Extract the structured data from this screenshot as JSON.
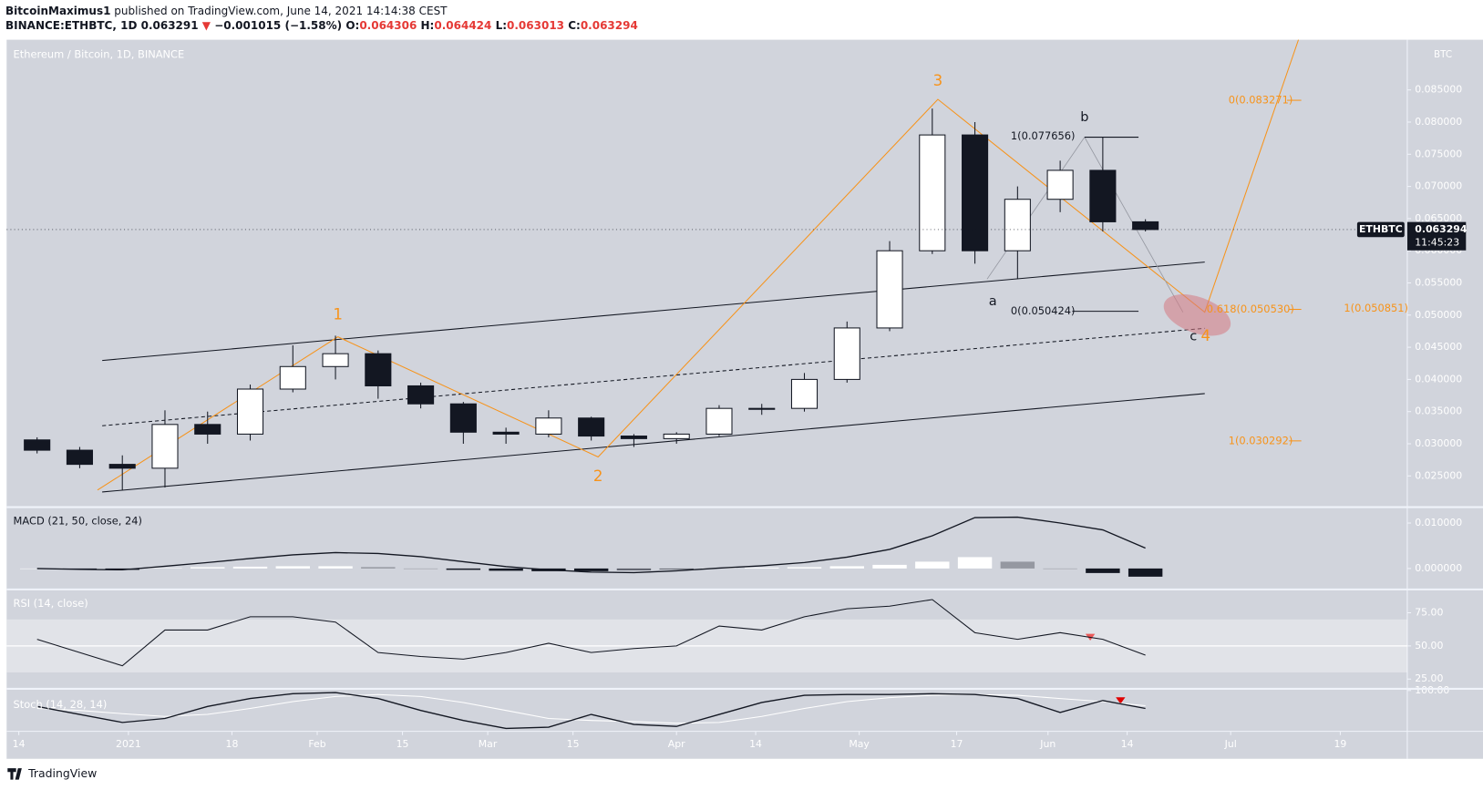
{
  "header": {
    "author": "BitcoinMaximus1",
    "published": "published on TradingView.com, June 14, 2021 14:14:38 CEST",
    "symbol": "BINANCE:ETHBTC, 1D",
    "last": "0.063291",
    "arrow": "▼",
    "change": "−0.001015 (−1.58%)",
    "o_label": "O:",
    "o": "0.064306",
    "h_label": "H:",
    "h": "0.064424",
    "l_label": "L:",
    "l": "0.063013",
    "c_label": "C:",
    "c": "0.063294"
  },
  "footer": {
    "brand": "TradingView"
  },
  "chart_data": [
    {
      "type": "candlestick",
      "title": "Ethereum / Bitcoin, 1D, BINANCE",
      "currency": "BTC",
      "x": [
        "2020-12-14",
        "2020-12-21",
        "2020-12-28",
        "2021-01-04",
        "2021-01-11",
        "2021-01-18",
        "2021-01-25",
        "2021-02-01",
        "2021-02-08",
        "2021-02-15",
        "2021-02-22",
        "2021-03-01",
        "2021-03-08",
        "2021-03-15",
        "2021-03-22",
        "2021-03-29",
        "2021-04-05",
        "2021-04-12",
        "2021-04-19",
        "2021-04-26",
        "2021-05-03",
        "2021-05-10",
        "2021-05-17",
        "2021-05-24",
        "2021-05-31",
        "2021-06-07",
        "2021-06-14"
      ],
      "open": [
        0.0306,
        0.029,
        0.0268,
        0.0262,
        0.033,
        0.0315,
        0.0385,
        0.042,
        0.044,
        0.039,
        0.0362,
        0.0318,
        0.0315,
        0.034,
        0.0312,
        0.0308,
        0.0315,
        0.0355,
        0.0355,
        0.04,
        0.048,
        0.06,
        0.078,
        0.06,
        0.068,
        0.0725,
        0.0645
      ],
      "high": [
        0.031,
        0.0295,
        0.0282,
        0.0352,
        0.035,
        0.0392,
        0.0453,
        0.0468,
        0.0445,
        0.0395,
        0.0365,
        0.0325,
        0.0352,
        0.0342,
        0.0315,
        0.0318,
        0.036,
        0.0362,
        0.041,
        0.049,
        0.0615,
        0.0821,
        0.08,
        0.07,
        0.074,
        0.0777,
        0.0649
      ],
      "low": [
        0.0285,
        0.0262,
        0.0228,
        0.0232,
        0.03,
        0.0305,
        0.038,
        0.04,
        0.037,
        0.0355,
        0.03,
        0.03,
        0.031,
        0.0305,
        0.0295,
        0.03,
        0.0312,
        0.0345,
        0.035,
        0.0395,
        0.0475,
        0.0595,
        0.058,
        0.0556,
        0.066,
        0.063,
        0.063
      ],
      "close": [
        0.029,
        0.0268,
        0.0262,
        0.033,
        0.0315,
        0.0385,
        0.042,
        0.044,
        0.039,
        0.0362,
        0.0318,
        0.0315,
        0.034,
        0.0312,
        0.0308,
        0.0315,
        0.0355,
        0.0355,
        0.04,
        0.048,
        0.06,
        0.078,
        0.06,
        0.068,
        0.0725,
        0.0645,
        0.0633
      ],
      "up_color": "#ffffff",
      "down_color": "#131722",
      "xlim": [
        "2020-12-12",
        "2021-07-30"
      ],
      "xticks": [
        {
          "value": "2020-12-14",
          "label": "14"
        },
        {
          "value": "2021-01-01",
          "label": "2021"
        },
        {
          "value": "2021-01-18",
          "label": "18"
        },
        {
          "value": "2021-02-01",
          "label": "Feb"
        },
        {
          "value": "2021-02-15",
          "label": "15"
        },
        {
          "value": "2021-03-01",
          "label": "Mar"
        },
        {
          "value": "2021-03-15",
          "label": "15"
        },
        {
          "value": "2021-04-01",
          "label": "Apr"
        },
        {
          "value": "2021-04-14",
          "label": "14"
        },
        {
          "value": "2021-05-01",
          "label": "May"
        },
        {
          "value": "2021-05-17",
          "label": "17"
        },
        {
          "value": "2021-06-01",
          "label": "Jun"
        },
        {
          "value": "2021-06-14",
          "label": "14"
        },
        {
          "value": "2021-07-01",
          "label": "Jul"
        },
        {
          "value": "2021-07-19",
          "label": "19"
        }
      ],
      "ylim": [
        0.0203,
        0.0928
      ],
      "yticks": [
        {
          "value": 0.025,
          "label": "0.025000"
        },
        {
          "value": 0.03,
          "label": "0.030000"
        },
        {
          "value": 0.035,
          "label": "0.035000"
        },
        {
          "value": 0.04,
          "label": "0.040000"
        },
        {
          "value": 0.045,
          "label": "0.045000"
        },
        {
          "value": 0.05,
          "label": "0.050000"
        },
        {
          "value": 0.055,
          "label": "0.055000"
        },
        {
          "value": 0.06,
          "label": "0.060000"
        },
        {
          "value": 0.065,
          "label": "0.065000"
        },
        {
          "value": 0.07,
          "label": "0.070000"
        },
        {
          "value": 0.075,
          "label": "0.075000"
        },
        {
          "value": 0.08,
          "label": "0.080000"
        },
        {
          "value": 0.085,
          "label": "0.085000"
        }
      ],
      "price_tag": {
        "symbol": "ETHBTC",
        "value": 0.063294,
        "label": "0.063294",
        "countdown": "11:45:23"
      },
      "annotations": [
        "1",
        "2",
        "3",
        "4",
        "a",
        "b",
        "c",
        "0(0.083271)",
        "0.618(0.050530)",
        "1(0.030292)",
        "1(0.050851)",
        "1(0.077656)",
        "0(0.050424)"
      ]
    },
    {
      "type": "macd",
      "title": "MACD (21, 50, close, 24)",
      "macd": [
        0.0,
        -0.0002,
        -0.0003,
        0.0005,
        0.0013,
        0.0022,
        0.003,
        0.0035,
        0.0033,
        0.0026,
        0.0015,
        0.0004,
        -0.0003,
        -0.0008,
        -0.0009,
        -0.0005,
        0.0001,
        0.0006,
        0.0013,
        0.0025,
        0.0042,
        0.0072,
        0.0112,
        0.0113,
        0.01,
        0.0085,
        0.0045
      ],
      "histogram": [
        0.0,
        -0.0002,
        -0.0003,
        0.0001,
        0.0003,
        0.0004,
        0.0005,
        0.0005,
        0.0003,
        0.0,
        -0.0003,
        -0.0005,
        -0.0006,
        -0.0006,
        -0.0004,
        -0.0002,
        0.0001,
        0.0002,
        0.0003,
        0.0005,
        0.0008,
        0.0015,
        0.0025,
        0.0015,
        0.0,
        -0.001,
        -0.0018
      ],
      "color": "#131722",
      "ylim": [
        -0.0044,
        0.0133
      ],
      "yticks": [
        {
          "value": 0,
          "label": "0.000000"
        },
        {
          "value": 0.01,
          "label": "0.010000"
        }
      ]
    },
    {
      "type": "rsi",
      "title": "RSI (14, close)",
      "values": [
        55,
        45,
        35,
        62,
        62,
        72,
        72,
        68,
        45,
        42,
        40,
        45,
        52,
        45,
        48,
        50,
        65,
        62,
        72,
        78,
        80,
        85,
        60,
        55,
        60,
        55,
        43
      ],
      "color": "#131722",
      "band": [
        30,
        70
      ],
      "midline": 50,
      "ylim": [
        18.4,
        91.9
      ],
      "yticks": [
        {
          "value": 25,
          "label": "25.00"
        },
        {
          "value": 50,
          "label": "50.00"
        },
        {
          "value": 75,
          "label": "75.00"
        }
      ]
    },
    {
      "type": "stoch",
      "title": "Stoch (14, 28, 14)",
      "k": [
        60,
        40,
        20,
        30,
        60,
        80,
        92,
        95,
        80,
        50,
        25,
        5,
        8,
        40,
        15,
        10,
        40,
        70,
        88,
        90,
        90,
        92,
        90,
        80,
        45,
        75,
        55
      ],
      "d": [
        55,
        50,
        42,
        35,
        40,
        55,
        72,
        85,
        90,
        85,
        70,
        50,
        30,
        25,
        22,
        18,
        20,
        35,
        55,
        72,
        82,
        88,
        90,
        88,
        80,
        72,
        62
      ],
      "k_color": "#131722",
      "d_color": "#ffffff",
      "ylim": [
        0,
        102
      ],
      "yticks": [
        {
          "value": 100,
          "label": "100.00"
        }
      ]
    }
  ]
}
